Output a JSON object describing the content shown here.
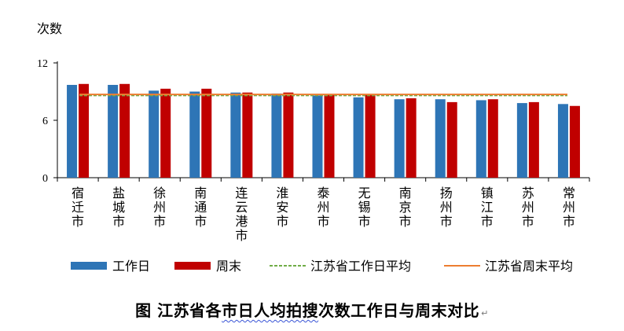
{
  "caption": {
    "text_before": "图  江苏省各",
    "text_underlined": "市日人均拍搜",
    "text_after": "次数工作日与周末对比",
    "mark": "↵"
  },
  "chart_data": {
    "type": "bar",
    "title": "",
    "xlabel": "",
    "ylabel": "次数",
    "ylim": [
      0,
      12
    ],
    "yticks": [
      0,
      6,
      12
    ],
    "grid": false,
    "legend_position": "bottom",
    "categories": [
      "宿迁市",
      "盐城市",
      "徐州市",
      "南通市",
      "连云港市",
      "淮安市",
      "泰州市",
      "无锡市",
      "南京市",
      "扬州市",
      "镇江市",
      "苏州市",
      "常州市"
    ],
    "series": [
      {
        "name": "工作日",
        "color": "#2e75b6",
        "values": [
          9.7,
          9.7,
          9.1,
          9.0,
          8.9,
          8.8,
          8.6,
          8.4,
          8.2,
          8.2,
          8.1,
          7.8,
          7.7
        ]
      },
      {
        "name": "周末",
        "color": "#c00000",
        "values": [
          9.8,
          9.8,
          9.3,
          9.3,
          8.9,
          8.9,
          8.7,
          8.7,
          8.3,
          7.9,
          8.2,
          7.9,
          7.5
        ]
      }
    ],
    "reference_lines": [
      {
        "name": "江苏省工作日平均",
        "value": 8.6,
        "color": "#70ad47",
        "style": "dashed"
      },
      {
        "name": "江苏省周末平均",
        "value": 8.7,
        "color": "#ed7d31",
        "style": "solid"
      }
    ]
  }
}
